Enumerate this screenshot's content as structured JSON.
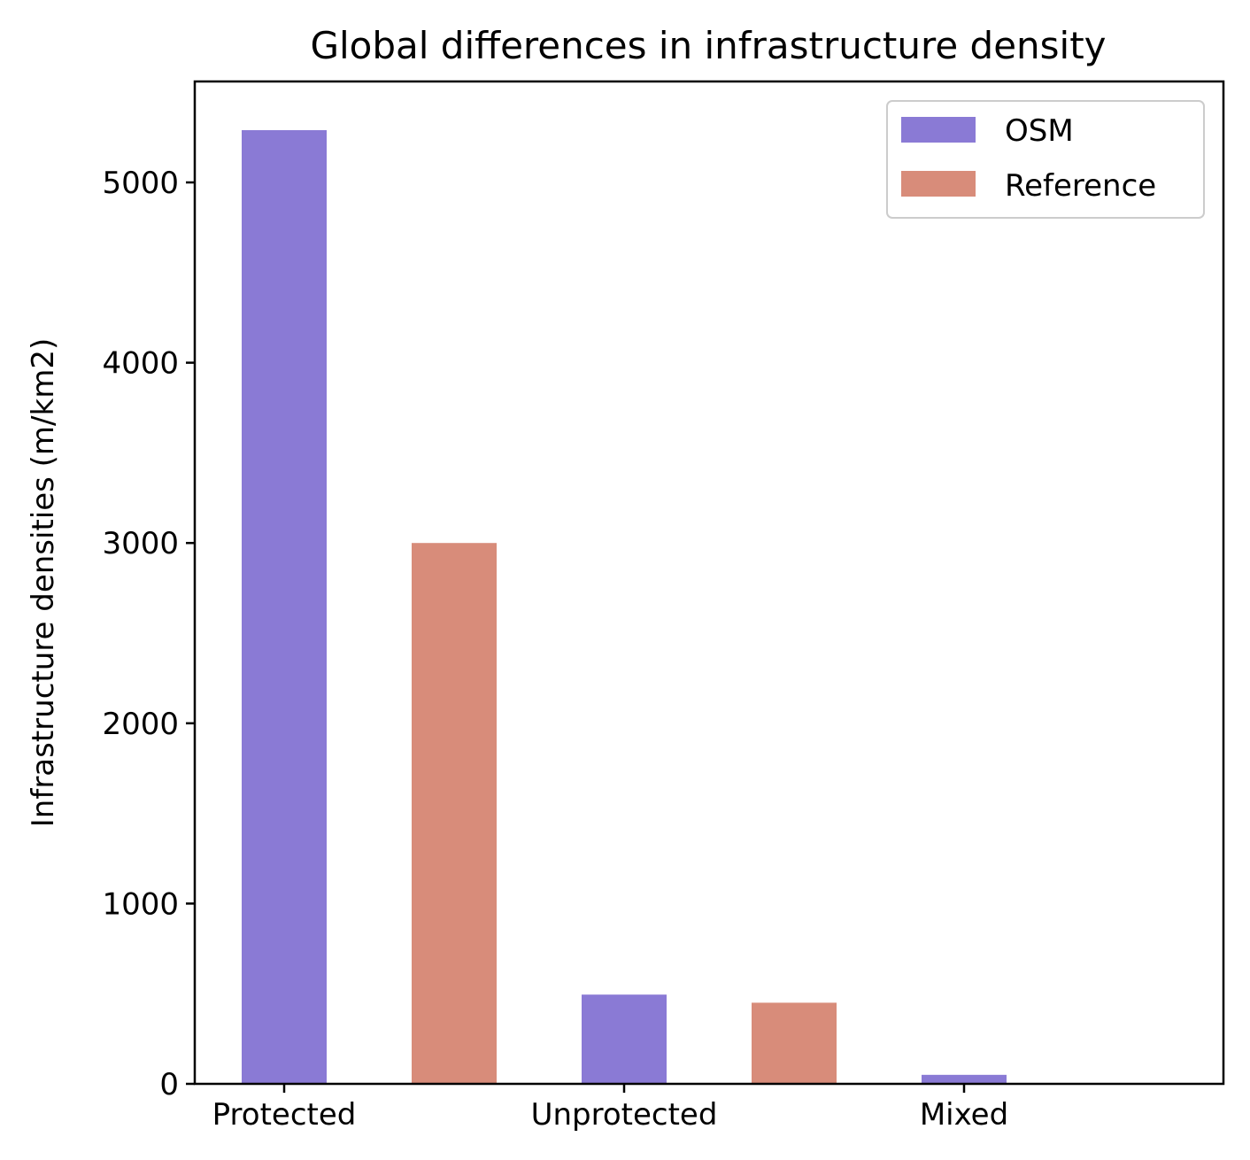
{
  "chart_data": {
    "type": "bar",
    "title": "Global differences in infrastructure density",
    "xlabel": "",
    "ylabel": "Infrastructure densities (m/km2)",
    "ylim": [
      0,
      5560
    ],
    "yticks": [
      "0",
      "1000",
      "2000",
      "3000",
      "4000",
      "5000"
    ],
    "categories": [
      "Protected",
      "Unprotected",
      "Mixed"
    ],
    "series": [
      {
        "name": "OSM",
        "color": "#8a7ad5",
        "values": [
          5290,
          495,
          50
        ]
      },
      {
        "name": "Reference",
        "color": "#d88c7a",
        "values": [
          3000,
          450,
          0
        ]
      }
    ],
    "grid": false,
    "legend": "top-right"
  }
}
